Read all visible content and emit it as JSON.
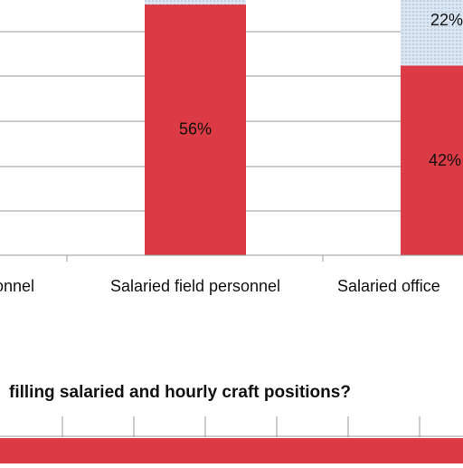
{
  "colors": {
    "bar_red": "#dc3a44",
    "dotted_fill": "#dbe6f3",
    "dotted_dot": "#9fb4cf",
    "grid": "#9a9a9a",
    "text": "#111111"
  },
  "chart_data": [
    {
      "type": "bar",
      "stacked": true,
      "categories": [
        "Salaried field personnel",
        "Salaried office"
      ],
      "category_tick_labels": [
        "onnel",
        "Salaried field personnel",
        "Salaried office"
      ],
      "series": [
        {
          "values": [
            56,
            42
          ],
          "labels": [
            "56%",
            "42%"
          ],
          "color": "#dc3a44"
        },
        {
          "values": [
            null,
            22
          ],
          "labels": [
            "",
            "22%"
          ],
          "color": "#dbe6f3",
          "pattern": "dotted"
        }
      ],
      "grid": true
    },
    {
      "type": "bar",
      "title": "filling salaried and hourly craft positions?",
      "grid": true,
      "series": [
        {
          "color": "#dc3a44"
        }
      ]
    }
  ]
}
